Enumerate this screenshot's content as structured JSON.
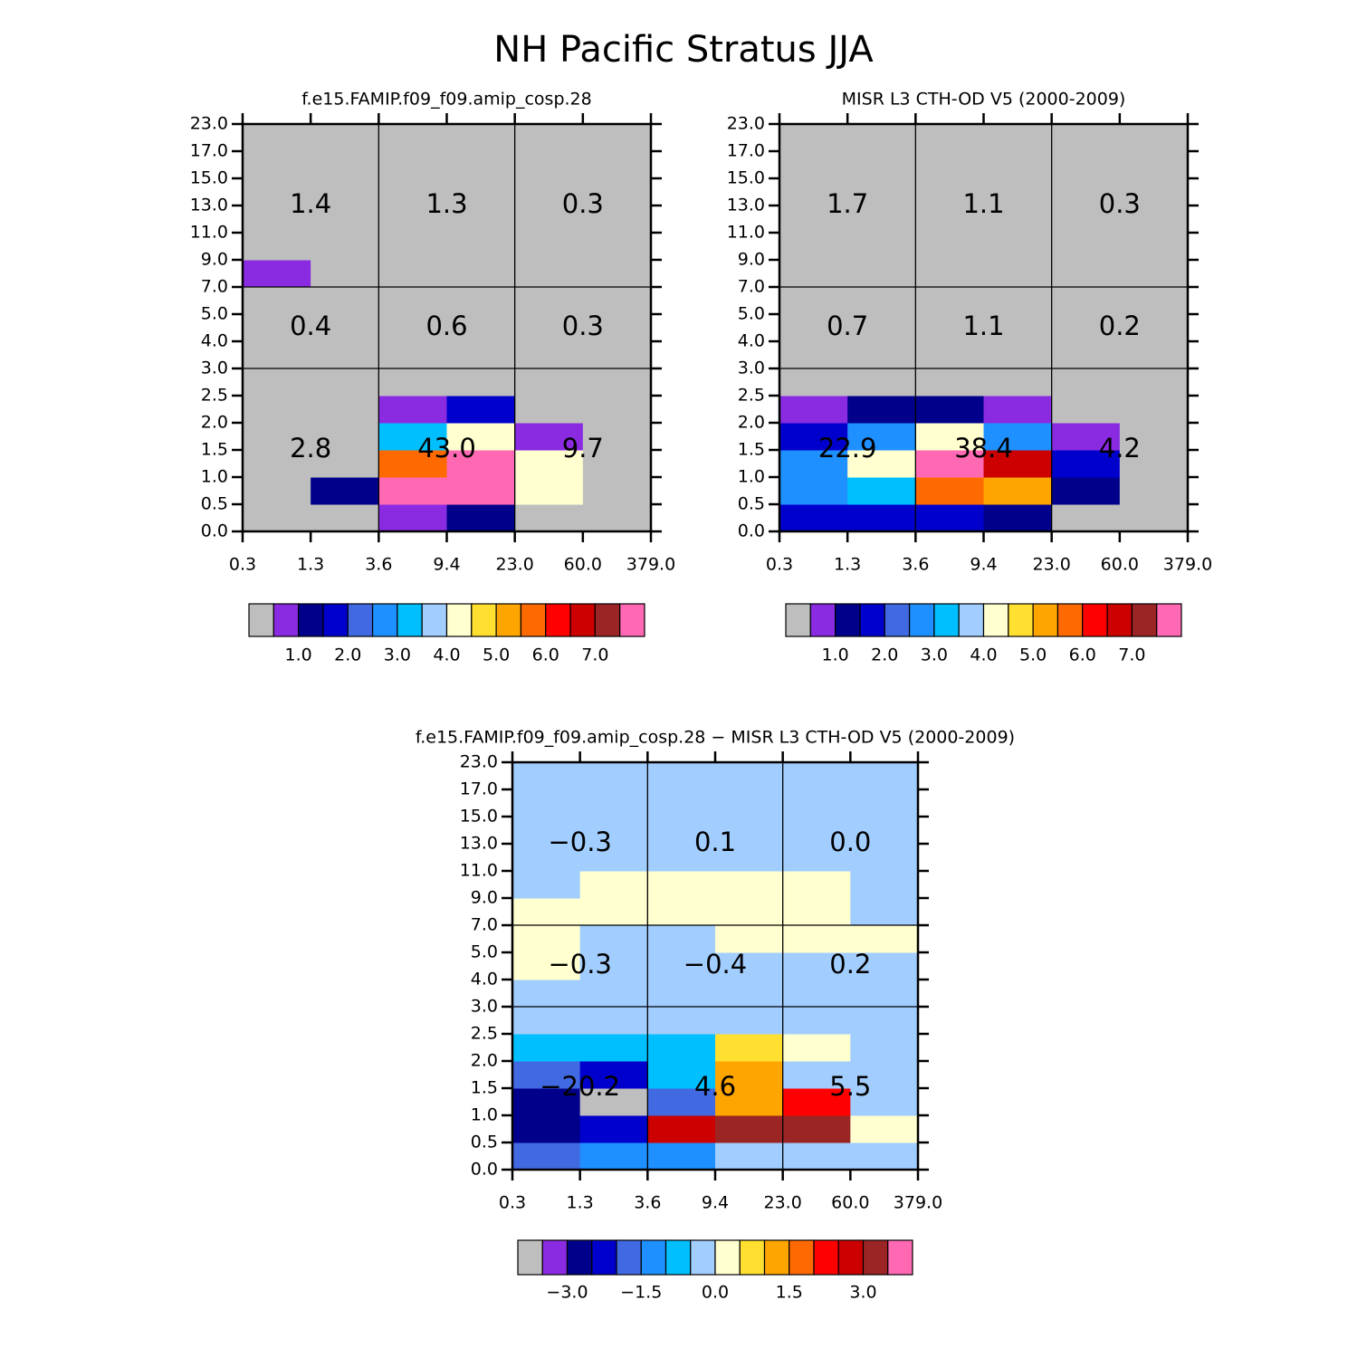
{
  "title": "NH Pacific Stratus JJA",
  "chart_data": [
    {
      "type": "heatmap",
      "title": "f.e15.FAMIP.f09_f09.amip_cosp.28",
      "xticks": [
        0.3,
        1.3,
        3.6,
        9.4,
        {
          "value": 23,
          "label": "23.0"
        },
        {
          "value": 60,
          "label": "60.0"
        },
        {
          "value": 379,
          "label": "379.0"
        }
      ],
      "yticks": [
        {
          "value": 0,
          "label": "0.0"
        },
        0.5,
        {
          "value": 1,
          "label": "1.0"
        },
        1.5,
        {
          "value": 2,
          "label": "2.0"
        },
        2.5,
        {
          "value": 3,
          "label": "3.0"
        },
        {
          "value": 4,
          "label": "4.0"
        },
        {
          "value": 5,
          "label": "5.0"
        },
        {
          "value": 7,
          "label": "7.0"
        },
        {
          "value": 9,
          "label": "9.0"
        },
        {
          "value": 11,
          "label": "11.0"
        },
        {
          "value": 13,
          "label": "13.0"
        },
        {
          "value": 15,
          "label": "15.0"
        },
        {
          "value": 17,
          "label": "17.0"
        },
        {
          "value": 23,
          "label": "23.0"
        }
      ],
      "values": [
        [
          0.2,
          0.2,
          0.7,
          1.2,
          0.2,
          0.2
        ],
        [
          0.2,
          1.2,
          8,
          8,
          4.2,
          0.2
        ],
        [
          0.2,
          0.2,
          5.7,
          8,
          4.2,
          0.2
        ],
        [
          0.2,
          0.2,
          3.2,
          4.2,
          0.7,
          0.2
        ],
        [
          0.2,
          0.2,
          0.7,
          1.7,
          0.2,
          0.2
        ],
        [
          0.2,
          0.2,
          0.2,
          0.2,
          0.2,
          0.2
        ],
        [
          0.2,
          0.2,
          0.2,
          0.2,
          0.2,
          0.2
        ],
        [
          0.2,
          0.2,
          0.2,
          0.2,
          0.2,
          0.2
        ],
        [
          0.2,
          0.2,
          0.2,
          0.2,
          0.2,
          0.2
        ],
        [
          0.7,
          0.2,
          0.2,
          0.2,
          0.2,
          0.2
        ],
        [
          0.2,
          0.2,
          0.2,
          0.2,
          0.2,
          0.2
        ],
        [
          0.2,
          0.2,
          0.2,
          0.2,
          0.2,
          0.2
        ],
        [
          0.2,
          0.2,
          0.2,
          0.2,
          0.2,
          0.2
        ],
        [
          0.2,
          0.2,
          0.2,
          0.2,
          0.2,
          0.2
        ],
        [
          0.2,
          0.2,
          0.2,
          0.2,
          0.2,
          0.2
        ]
      ],
      "summary": [
        [
          2.8,
          43,
          9.7
        ],
        [
          0.4,
          0.6,
          0.3
        ],
        [
          1.4,
          1.3,
          0.3
        ]
      ],
      "summary_labels": [
        [
          "2.8",
          "43.0",
          "9.7"
        ],
        [
          "0.4",
          "0.6",
          "0.3"
        ],
        [
          "1.4",
          "1.3",
          "0.3"
        ]
      ],
      "levels": [
        0.5,
        1,
        1.5,
        2,
        2.5,
        3,
        3.5,
        4,
        4.5,
        5,
        5.5,
        6,
        6.5,
        7,
        7.5
      ],
      "colors": [
        "#bebebe",
        "#8a2be2",
        "#00008b",
        "#0000cd",
        "#4169e1",
        "#1e90ff",
        "#00bfff",
        "#a2cdff",
        "#ffffd0",
        "#ffe030",
        "#ffa500",
        "#ff6a00",
        "#ff0000",
        "#cc0000",
        "#9b2424",
        "#ff69b4"
      ],
      "colorbar_ticks": [
        {
          "value": 1,
          "label": "1.0"
        },
        {
          "value": 2,
          "label": "2.0"
        },
        {
          "value": 3,
          "label": "3.0"
        },
        {
          "value": 4,
          "label": "4.0"
        },
        {
          "value": 5,
          "label": "5.0"
        },
        {
          "value": 6,
          "label": "6.0"
        },
        {
          "value": 7,
          "label": "7.0"
        }
      ]
    },
    {
      "type": "heatmap",
      "title": "MISR L3 CTH-OD V5 (2000-2009)",
      "xticks": [
        0.3,
        1.3,
        3.6,
        9.4,
        {
          "value": 23,
          "label": "23.0"
        },
        {
          "value": 60,
          "label": "60.0"
        },
        {
          "value": 379,
          "label": "379.0"
        }
      ],
      "yticks": [
        {
          "value": 0,
          "label": "0.0"
        },
        0.5,
        {
          "value": 1,
          "label": "1.0"
        },
        1.5,
        {
          "value": 2,
          "label": "2.0"
        },
        2.5,
        {
          "value": 3,
          "label": "3.0"
        },
        {
          "value": 4,
          "label": "4.0"
        },
        {
          "value": 5,
          "label": "5.0"
        },
        {
          "value": 7,
          "label": "7.0"
        },
        {
          "value": 9,
          "label": "9.0"
        },
        {
          "value": 11,
          "label": "11.0"
        },
        {
          "value": 13,
          "label": "13.0"
        },
        {
          "value": 15,
          "label": "15.0"
        },
        {
          "value": 17,
          "label": "17.0"
        },
        {
          "value": 23,
          "label": "23.0"
        }
      ],
      "values": [
        [
          1.7,
          1.7,
          1.7,
          1.2,
          0.2,
          0.2
        ],
        [
          2.7,
          3.2,
          5.7,
          5.2,
          1.2,
          0.2
        ],
        [
          2.7,
          4.2,
          8,
          6.7,
          1.7,
          0.2
        ],
        [
          1.7,
          2.7,
          4.2,
          2.7,
          0.7,
          0.2
        ],
        [
          0.7,
          1.2,
          1.2,
          0.7,
          0.2,
          0.2
        ],
        [
          0.2,
          0.2,
          0.2,
          0.2,
          0.2,
          0.2
        ],
        [
          0.2,
          0.2,
          0.2,
          0.2,
          0.2,
          0.2
        ],
        [
          0.2,
          0.2,
          0.2,
          0.2,
          0.2,
          0.2
        ],
        [
          0.2,
          0.2,
          0.2,
          0.2,
          0.2,
          0.2
        ],
        [
          0.2,
          0.2,
          0.2,
          0.2,
          0.2,
          0.2
        ],
        [
          0.2,
          0.2,
          0.2,
          0.2,
          0.2,
          0.2
        ],
        [
          0.2,
          0.2,
          0.2,
          0.2,
          0.2,
          0.2
        ],
        [
          0.2,
          0.2,
          0.2,
          0.2,
          0.2,
          0.2
        ],
        [
          0.2,
          0.2,
          0.2,
          0.2,
          0.2,
          0.2
        ],
        [
          0.2,
          0.2,
          0.2,
          0.2,
          0.2,
          0.2
        ]
      ],
      "summary": [
        [
          22.9,
          38.4,
          4.2
        ],
        [
          0.7,
          1.1,
          0.2
        ],
        [
          1.7,
          1.1,
          0.3
        ]
      ],
      "summary_labels": [
        [
          "22.9",
          "38.4",
          "4.2"
        ],
        [
          "0.7",
          "1.1",
          "0.2"
        ],
        [
          "1.7",
          "1.1",
          "0.3"
        ]
      ],
      "levels": [
        0.5,
        1,
        1.5,
        2,
        2.5,
        3,
        3.5,
        4,
        4.5,
        5,
        5.5,
        6,
        6.5,
        7,
        7.5
      ],
      "colors": [
        "#bebebe",
        "#8a2be2",
        "#00008b",
        "#0000cd",
        "#4169e1",
        "#1e90ff",
        "#00bfff",
        "#a2cdff",
        "#ffffd0",
        "#ffe030",
        "#ffa500",
        "#ff6a00",
        "#ff0000",
        "#cc0000",
        "#9b2424",
        "#ff69b4"
      ],
      "colorbar_ticks": [
        {
          "value": 1,
          "label": "1.0"
        },
        {
          "value": 2,
          "label": "2.0"
        },
        {
          "value": 3,
          "label": "3.0"
        },
        {
          "value": 4,
          "label": "4.0"
        },
        {
          "value": 5,
          "label": "5.0"
        },
        {
          "value": 6,
          "label": "6.0"
        },
        {
          "value": 7,
          "label": "7.0"
        }
      ]
    },
    {
      "type": "heatmap",
      "title": "f.e15.FAMIP.f09_f09.amip_cosp.28 − MISR L3 CTH-OD V5 (2000-2009)",
      "xticks": [
        0.3,
        1.3,
        3.6,
        9.4,
        {
          "value": 23,
          "label": "23.0"
        },
        {
          "value": 60,
          "label": "60.0"
        },
        {
          "value": 379,
          "label": "379.0"
        }
      ],
      "yticks": [
        {
          "value": 0,
          "label": "0.0"
        },
        0.5,
        {
          "value": 1,
          "label": "1.0"
        },
        1.5,
        {
          "value": 2,
          "label": "2.0"
        },
        2.5,
        {
          "value": 3,
          "label": "3.0"
        },
        {
          "value": 4,
          "label": "4.0"
        },
        {
          "value": 5,
          "label": "5.0"
        },
        {
          "value": 7,
          "label": "7.0"
        },
        {
          "value": 9,
          "label": "9.0"
        },
        {
          "value": 11,
          "label": "11.0"
        },
        {
          "value": 13,
          "label": "13.0"
        },
        {
          "value": 15,
          "label": "15.0"
        },
        {
          "value": 17,
          "label": "17.0"
        },
        {
          "value": 23,
          "label": "23.0"
        }
      ],
      "values": [
        [
          -1.7,
          -1.2,
          -1.2,
          -0.2,
          -0.2,
          -0.2
        ],
        [
          -2.7,
          -2.2,
          2.7,
          3.2,
          3.2,
          0.2
        ],
        [
          -2.7,
          -4,
          -1.7,
          1.2,
          2.2,
          -0.2
        ],
        [
          -1.7,
          -2.2,
          -0.7,
          1.2,
          -0.2,
          -0.2
        ],
        [
          -0.7,
          -0.7,
          -0.7,
          0.7,
          0.2,
          -0.2
        ],
        [
          -0.2,
          -0.2,
          -0.2,
          -0.2,
          -0.2,
          -0.2
        ],
        [
          -0.2,
          -0.2,
          -0.2,
          -0.2,
          -0.2,
          -0.2
        ],
        [
          0.2,
          -0.2,
          -0.2,
          -0.2,
          -0.2,
          -0.2
        ],
        [
          0.2,
          -0.2,
          -0.2,
          0.2,
          0.2,
          0.2
        ],
        [
          0.2,
          0.2,
          0.2,
          0.2,
          0.2,
          -0.2
        ],
        [
          -0.2,
          0.2,
          0.2,
          0.2,
          0.2,
          -0.2
        ],
        [
          -0.2,
          -0.2,
          -0.2,
          -0.2,
          -0.2,
          -0.2
        ],
        [
          -0.2,
          -0.2,
          -0.2,
          -0.2,
          -0.2,
          -0.2
        ],
        [
          -0.2,
          -0.2,
          -0.2,
          -0.2,
          -0.2,
          -0.2
        ],
        [
          -0.2,
          -0.2,
          -0.2,
          -0.2,
          -0.2,
          -0.2
        ]
      ],
      "summary": [
        [
          -20.2,
          4.6,
          5.5
        ],
        [
          -0.3,
          -0.4,
          0.2
        ],
        [
          -0.3,
          0.1,
          0
        ]
      ],
      "summary_labels": [
        [
          "−20.2",
          "4.6",
          "5.5"
        ],
        [
          "−0.3",
          "−0.4",
          "0.2"
        ],
        [
          "−0.3",
          "0.1",
          "0.0"
        ]
      ],
      "levels": [
        -3.5,
        -3,
        -2.5,
        -2,
        -1.5,
        -1,
        -0.5,
        0,
        0.5,
        1,
        1.5,
        2,
        2.5,
        3,
        3.5
      ],
      "colors": [
        "#bebebe",
        "#8a2be2",
        "#00008b",
        "#0000cd",
        "#4169e1",
        "#1e90ff",
        "#00bfff",
        "#a2cdff",
        "#ffffd0",
        "#ffe030",
        "#ffa500",
        "#ff6a00",
        "#ff0000",
        "#cc0000",
        "#9b2424",
        "#ff69b4"
      ],
      "colorbar_ticks": [
        {
          "value": -3,
          "label": "−3.0"
        },
        {
          "value": -1.5,
          "label": "−1.5"
        },
        {
          "value": 0,
          "label": "0.0"
        },
        {
          "value": 1.5,
          "label": "1.5"
        },
        {
          "value": 3,
          "label": "3.0"
        }
      ]
    }
  ]
}
